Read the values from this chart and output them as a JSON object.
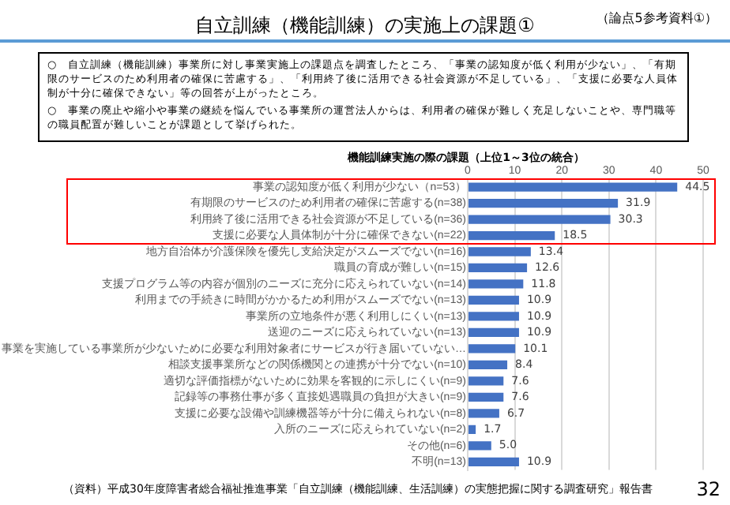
{
  "chart_data": {
    "type": "bar",
    "orientation": "horizontal",
    "title": "自立訓練（機能訓練）の実施上の課題①",
    "subtitle": "機能訓練実施の際の課題（上位1～3位の統合）",
    "annotations": [
      "（論点5参考資料①）",
      "○　自立訓練（機能訓練）事業所に対し事業実施上の課題点を調査したところ、「事業の認知度が低く利用が少ない」、「有期限のサービスのため利用者の確保に苦慮する」、「利用終了後に活用できる社会資源が不足している」、「支援に必要な人員体制が十分に確保できない」等の回答が上がったところ。",
      "○　事業の廃止や縮小や事業の継続を悩んでいる事業所の運営法人からは、利用者の確保が難しく充足しないことや、専門職等の職員配置が難しいことが課題として挙げられた。",
      "（資料）平成30年度障害者総合福祉推進事業「自立訓練（機能訓練、生活訓練）の実態把握に関する調査研究」報告書",
      "32"
    ],
    "categories": [
      "事業の認知度が低く利用が少ない（n=53）",
      "有期限のサービスのため利用者の確保に苦慮する(n=38)",
      "利用終了後に活用できる社会資源が不足している(n=36)",
      "支援に必要な人員体制が十分に確保できない(n=22)",
      "地方自治体が介護保険を優先し支給決定がスムーズでない(n=16)",
      "職員の育成が難しい(n=15)",
      "支援プログラム等の内容が個別のニーズに充分に応えられていない(n=14)",
      "利用までの手続きに時間がかかるため利用がスムーズでない(n=13)",
      "事業所の立地条件が悪く利用しにくい(n=13)",
      "送迎のニーズに応えられていない(n=13)",
      "事業を実施している事業所が少ないために必要な利用対象者にサービスが行き届いていない…",
      "相談支援事業所などの関係機関との連携が十分でない(n=10)",
      "適切な評価指標がないために効果を客観的に示しにくい(n=9)",
      "記録等の事務仕事が多く直接処遇職員の負担が大きい(n=9)",
      "支援に必要な設備や訓練機器等が十分に備えられない(n=8)",
      "入所のニーズに応えられていない(n=2)",
      "その他(n=6)",
      "不明(n=13)"
    ],
    "values": [
      44.5,
      31.9,
      30.3,
      18.5,
      13.4,
      12.6,
      11.8,
      10.9,
      10.9,
      10.9,
      10.1,
      8.4,
      7.6,
      7.6,
      6.7,
      1.7,
      5.0,
      10.9
    ],
    "value_labels": [
      "44.5",
      "31.9",
      "30.3",
      "18.5",
      "13.4",
      "12.6",
      "11.8",
      "10.9",
      "10.9",
      "10.9",
      "10.1",
      "8.4",
      "7.6",
      "7.6",
      "6.7",
      "1.7",
      "5.0",
      "10.9"
    ],
    "color": "#4472c4",
    "xlim": [
      0,
      50
    ],
    "xticks": [
      0,
      10,
      20,
      30,
      40,
      50
    ],
    "grid": "x",
    "legend": false
  }
}
